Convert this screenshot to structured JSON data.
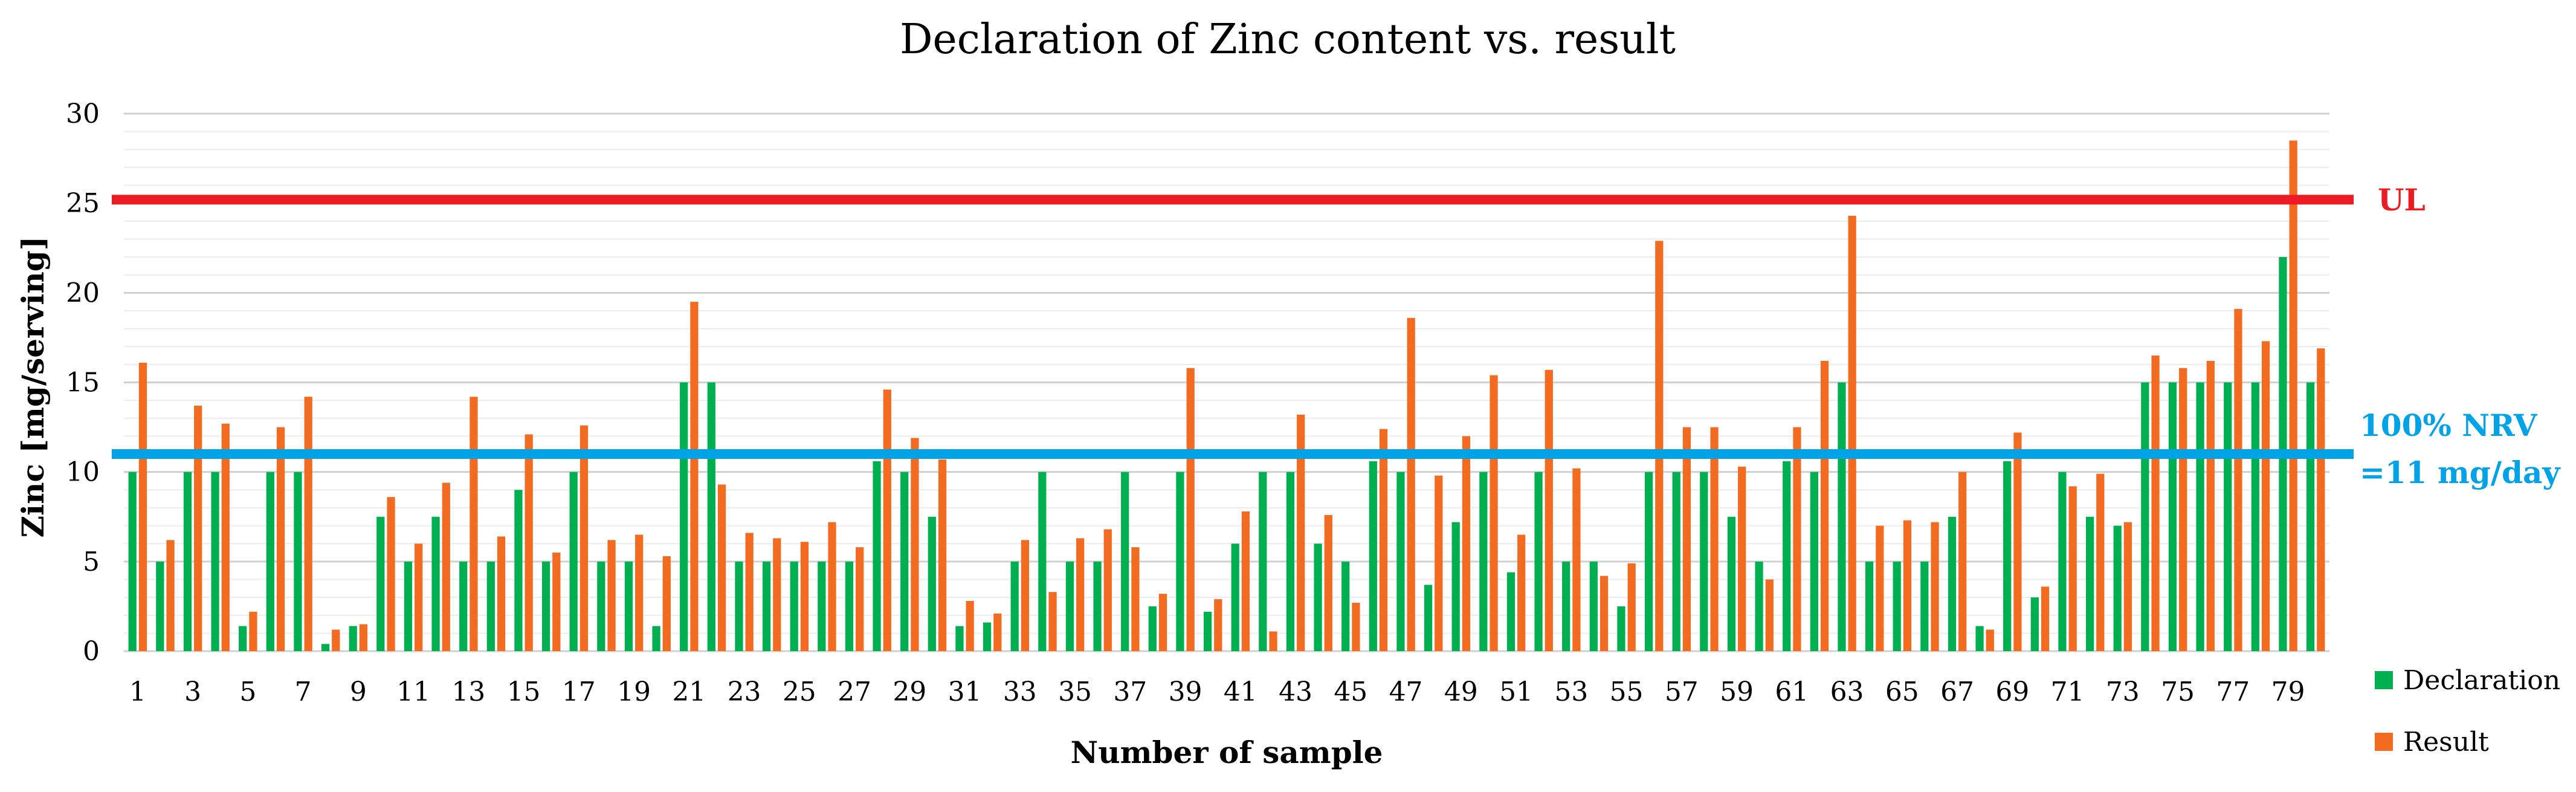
{
  "chart_data": {
    "type": "bar",
    "title": "Declaration of Zinc content vs. result",
    "xlabel": "Number of sample",
    "ylabel": "Zinc [mg/serving]",
    "ylim": [
      0,
      30
    ],
    "yticks": [
      0,
      5,
      10,
      15,
      20,
      25,
      30
    ],
    "grid": true,
    "legend_position": "bottom-right",
    "categories": [
      "1",
      "2",
      "3",
      "4",
      "5",
      "6",
      "7",
      "8",
      "9",
      "10",
      "11",
      "12",
      "13",
      "14",
      "15",
      "16",
      "17",
      "18",
      "19",
      "20",
      "21",
      "22",
      "23",
      "24",
      "25",
      "26",
      "27",
      "28",
      "29",
      "30",
      "31",
      "32",
      "33",
      "34",
      "35",
      "36",
      "37",
      "38",
      "39",
      "40",
      "41",
      "42",
      "43",
      "44",
      "45",
      "46",
      "47",
      "48",
      "49",
      "50",
      "51",
      "52",
      "53",
      "54",
      "55",
      "56",
      "57",
      "58",
      "59",
      "60",
      "61",
      "62",
      "63",
      "64",
      "65",
      "66",
      "67",
      "68",
      "69",
      "70",
      "71",
      "72",
      "73",
      "74",
      "75",
      "76",
      "77",
      "78",
      "79",
      "80"
    ],
    "x_tick_labels": [
      "1",
      "3",
      "5",
      "7",
      "9",
      "11",
      "13",
      "15",
      "17",
      "19",
      "21",
      "23",
      "25",
      "27",
      "29",
      "31",
      "33",
      "35",
      "37",
      "39",
      "41",
      "43",
      "45",
      "47",
      "49",
      "51",
      "53",
      "55",
      "57",
      "59",
      "61",
      "63",
      "65",
      "67",
      "69",
      "71",
      "73",
      "75",
      "77",
      "79"
    ],
    "series": [
      {
        "name": "Declaration",
        "color": "#00b050",
        "values": [
          10,
          5,
          10,
          10,
          1.4,
          10,
          10,
          0.4,
          1.4,
          7.5,
          5,
          7.5,
          5,
          5,
          9,
          5,
          10,
          5,
          5,
          1.4,
          15,
          15,
          5,
          5,
          5,
          5,
          5,
          10.6,
          10,
          7.5,
          1.4,
          1.6,
          5,
          10,
          5,
          5,
          10,
          2.5,
          10,
          2.2,
          6,
          10,
          10,
          6,
          5,
          10.6,
          10,
          3.7,
          7.2,
          10,
          4.4,
          10,
          5,
          5,
          2.5,
          10,
          10,
          10,
          7.5,
          5,
          10.6,
          10,
          15,
          5,
          5,
          5,
          7.5,
          1.4,
          10.6,
          3,
          10,
          7.5,
          7,
          15,
          15,
          15,
          15,
          15,
          22,
          15
        ]
      },
      {
        "name": "Result",
        "color": "#f26b21",
        "values": [
          16.1,
          6.2,
          13.7,
          12.7,
          2.2,
          12.5,
          14.2,
          1.2,
          1.5,
          8.6,
          6,
          9.4,
          14.2,
          6.4,
          12.1,
          5.5,
          12.6,
          6.2,
          6.5,
          5.3,
          19.5,
          9.3,
          6.6,
          6.3,
          6.1,
          7.2,
          5.8,
          14.6,
          11.9,
          10.7,
          2.8,
          2.1,
          6.2,
          3.3,
          6.3,
          6.8,
          5.8,
          3.2,
          15.8,
          2.9,
          7.8,
          1.1,
          13.2,
          7.6,
          2.7,
          12.4,
          18.6,
          9.8,
          12,
          15.4,
          6.5,
          15.7,
          10.2,
          4.2,
          4.9,
          22.9,
          12.5,
          12.5,
          10.3,
          4,
          12.5,
          16.2,
          24.3,
          7,
          7.3,
          7.2,
          10,
          1.2,
          12.2,
          3.6,
          9.2,
          9.9,
          7.2,
          16.5,
          15.8,
          16.2,
          19.1,
          17.3,
          28.5,
          16.9
        ]
      }
    ],
    "reference_lines": [
      {
        "value": 25.2,
        "label": "UL",
        "color": "#ed1c24"
      },
      {
        "value": 11,
        "label_lines": [
          "100% NRV",
          "=11 mg/day"
        ],
        "color": "#00a3e8"
      }
    ]
  }
}
